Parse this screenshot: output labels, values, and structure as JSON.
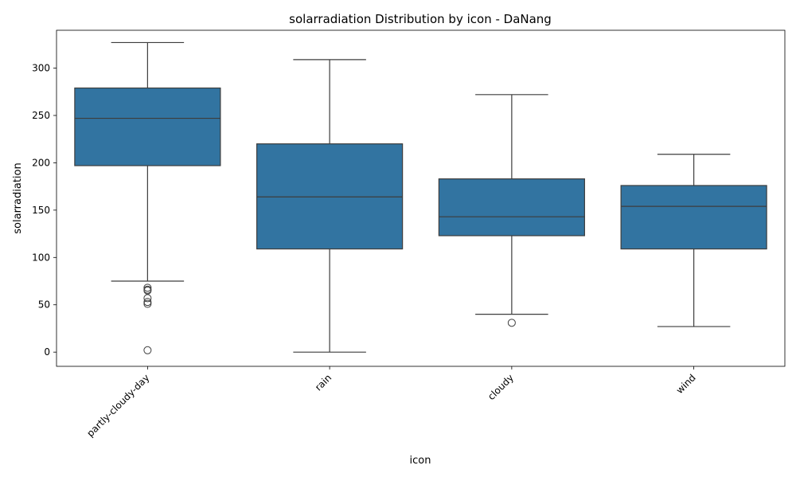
{
  "chart_data": {
    "type": "box",
    "title": "solarradiation Distribution by icon - DaNang",
    "xlabel": "icon",
    "ylabel": "solarradiation",
    "ylim": [
      -15,
      340
    ],
    "yticks": [
      0,
      50,
      100,
      150,
      200,
      250,
      300
    ],
    "box_color": "#3274a1",
    "line_color": "#3d3d3d",
    "categories": [
      "partly-cloudy-day",
      "rain",
      "cloudy",
      "wind"
    ],
    "boxes": [
      {
        "category": "partly-cloudy-day",
        "whisker_low": 75,
        "q1": 197,
        "median": 247,
        "q3": 279,
        "whisker_high": 327,
        "outliers": [
          68,
          66,
          65,
          57,
          53,
          51,
          2
        ]
      },
      {
        "category": "rain",
        "whisker_low": 0,
        "q1": 109,
        "median": 164,
        "q3": 220,
        "whisker_high": 309,
        "outliers": []
      },
      {
        "category": "cloudy",
        "whisker_low": 40,
        "q1": 123,
        "median": 143,
        "q3": 183,
        "whisker_high": 272,
        "outliers": [
          31
        ]
      },
      {
        "category": "wind",
        "whisker_low": 27,
        "q1": 109,
        "median": 154,
        "q3": 176,
        "whisker_high": 209,
        "outliers": []
      }
    ]
  }
}
